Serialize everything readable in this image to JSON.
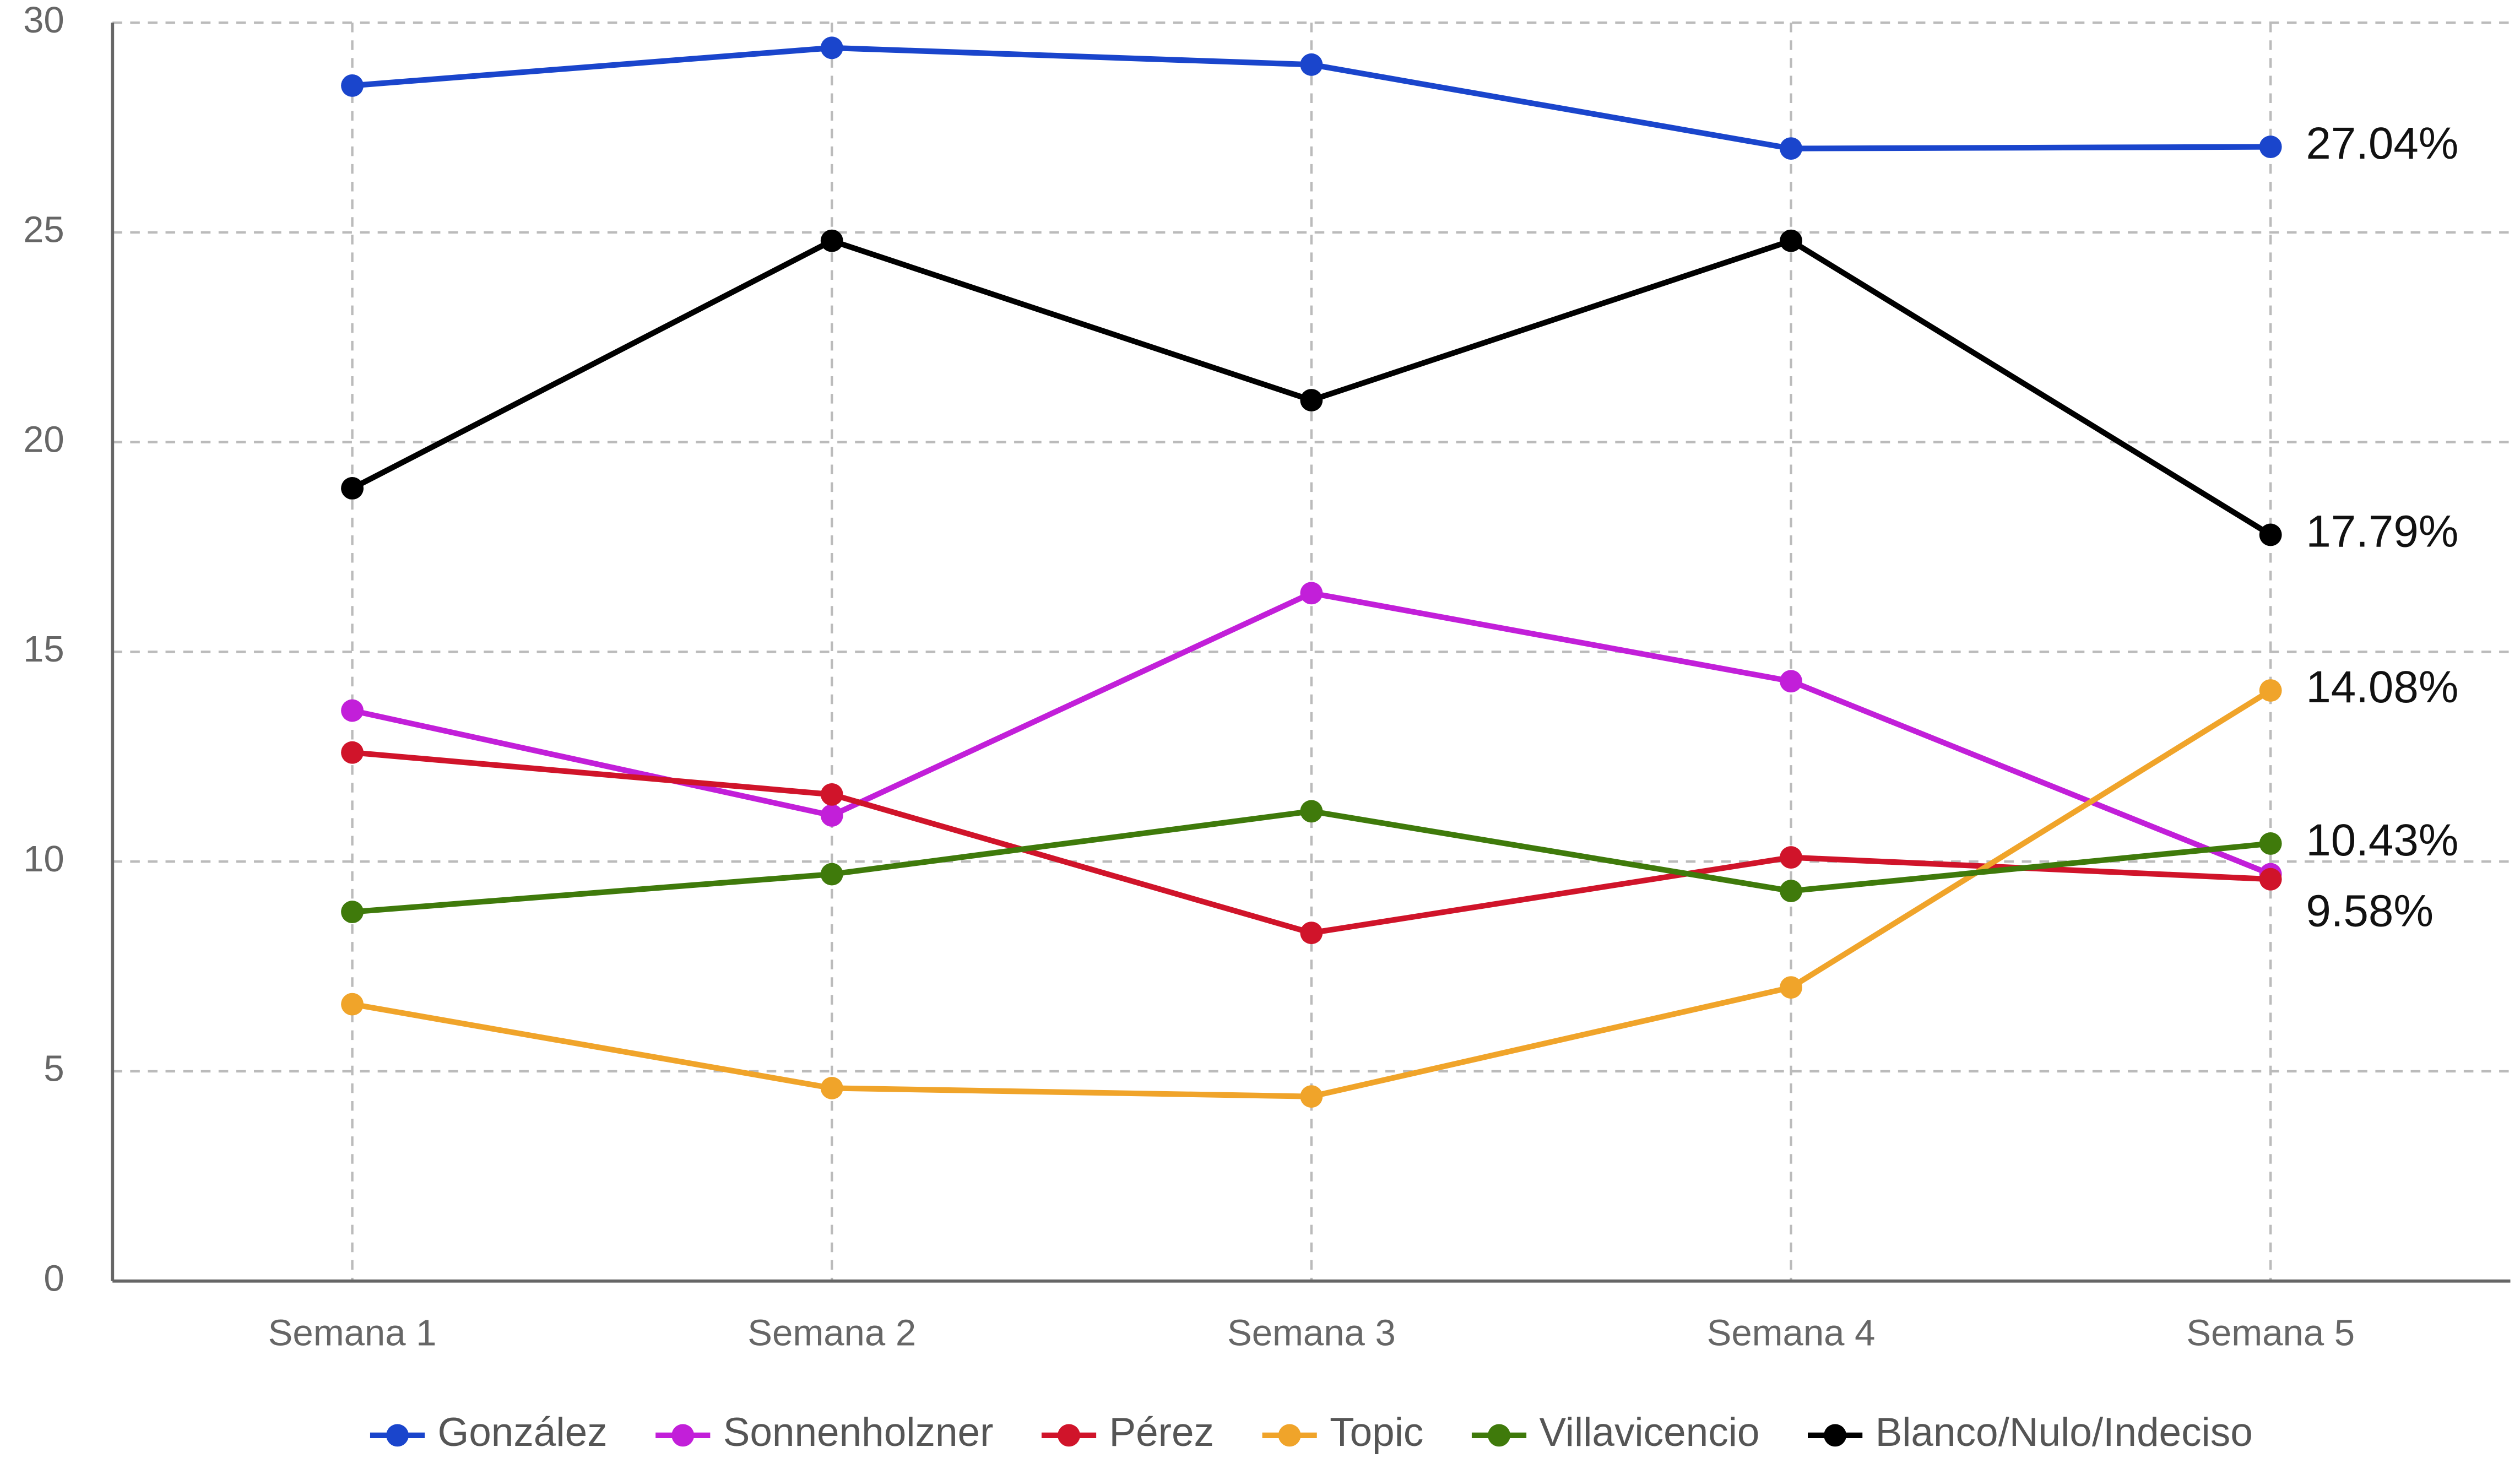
{
  "chart_data": {
    "type": "line",
    "categories": [
      "Semana 1",
      "Semana 2",
      "Semana 3",
      "Semana 4",
      "Semana 5"
    ],
    "series": [
      {
        "name": "González",
        "color": "#1a45cc",
        "values": [
          28.5,
          29.4,
          29.0,
          27.0,
          27.04
        ],
        "value_labels": [
          null,
          null,
          null,
          null,
          "27.04%"
        ]
      },
      {
        "name": "Sonnenholzner",
        "color": "#c21fd9",
        "values": [
          13.6,
          11.1,
          16.4,
          14.3,
          9.7
        ]
      },
      {
        "name": "Pérez",
        "color": "#d0142a",
        "values": [
          12.6,
          11.6,
          8.3,
          10.1,
          9.58
        ],
        "value_labels": [
          null,
          null,
          null,
          null,
          "9.58%"
        ]
      },
      {
        "name": "Topic",
        "color": "#f0a42a",
        "values": [
          6.6,
          4.6,
          4.4,
          7.0,
          14.08
        ],
        "value_labels": [
          null,
          null,
          null,
          null,
          "14.08%"
        ]
      },
      {
        "name": "Villavicencio",
        "color": "#3f7a0b",
        "values": [
          8.8,
          9.7,
          11.2,
          9.3,
          10.43
        ],
        "value_labels": [
          null,
          null,
          null,
          null,
          "10.43%"
        ]
      },
      {
        "name": "Blanco/Nulo/Indeciso",
        "color": "#000000",
        "values": [
          18.9,
          24.8,
          21.0,
          24.8,
          17.79
        ],
        "value_labels": [
          null,
          null,
          null,
          null,
          "17.79%"
        ]
      }
    ],
    "ylim": [
      0,
      30
    ],
    "yticks": [
      0,
      5,
      10,
      15,
      20,
      25,
      30
    ],
    "grid": true,
    "legend": "bottom"
  }
}
